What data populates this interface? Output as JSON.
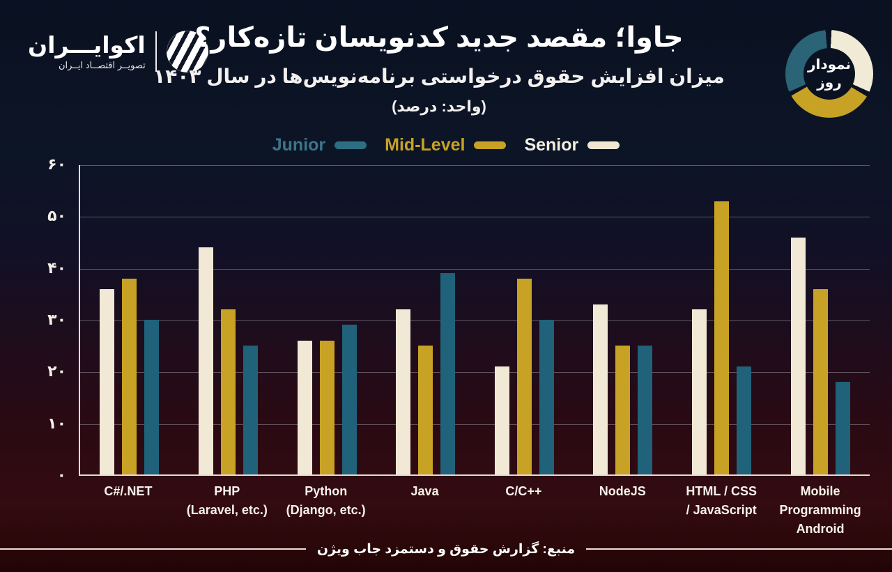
{
  "logo": {
    "name": "اکوایـــران",
    "tagline": "تصویــر اقتصــاد ایــران"
  },
  "badge": {
    "line1": "نمودار",
    "line2": "روز"
  },
  "header": {
    "title": "جاوا؛ مقصد جدید کدنویسان تازه‌کار؟",
    "subtitle": "میزان افزایش حقوق درخواستی برنامه‌نویس‌ها در سال ۱۴۰۳",
    "unit": "(واحد: درصد)"
  },
  "legend": {
    "items": [
      {
        "label": "Junior",
        "text_color": "#3e7488",
        "swatch": "#2c6e82"
      },
      {
        "label": "Mid-Level",
        "text_color": "#c8a224",
        "swatch": "#c8a224"
      },
      {
        "label": "Senior",
        "text_color": "#f3eee0",
        "swatch": "#efe7d2"
      }
    ]
  },
  "colors": {
    "junior": "#1f627a",
    "mid": "#c8a224",
    "senior": "#f1e9d6",
    "grid": "rgba(205,208,220,0.38)",
    "axis": "#e6d9d9",
    "background_top": "#0a1121",
    "background_bottom": "#220406"
  },
  "chart_data": {
    "type": "bar",
    "title": "جاوا؛ مقصد جدید کدنویسان تازه‌کار؟",
    "subtitle": "میزان افزایش حقوق درخواستی برنامه‌نویس‌ها در سال ۱۴۰۳",
    "unit": "درصد",
    "categories": [
      "C#/.NET",
      "PHP (Laravel, etc.)",
      "Python (Django, etc.)",
      "Java",
      "C/C++",
      "NodeJS",
      "HTML / CSS / JavaScript",
      "Mobile Programming Android"
    ],
    "category_label_lines": [
      [
        "C#/.NET"
      ],
      [
        "PHP",
        "(Laravel, etc.)"
      ],
      [
        "Python",
        "(Django, etc.)"
      ],
      [
        "Java"
      ],
      [
        "C/C++"
      ],
      [
        "NodeJS"
      ],
      [
        "HTML / CSS",
        "/ JavaScript"
      ],
      [
        "Mobile",
        "Programming",
        "Android"
      ]
    ],
    "series": [
      {
        "name": "Senior",
        "color": "#f1e9d6",
        "values": [
          36,
          44,
          26,
          32,
          21,
          33,
          32,
          46
        ]
      },
      {
        "name": "Mid-Level",
        "color": "#c8a224",
        "values": [
          38,
          32,
          26,
          25,
          38,
          25,
          53,
          36
        ]
      },
      {
        "name": "Junior",
        "color": "#1f627a",
        "values": [
          30,
          25,
          29,
          39,
          30,
          25,
          21,
          18
        ]
      }
    ],
    "ylim": [
      0,
      60
    ],
    "yticks_values": [
      0,
      10,
      20,
      30,
      40,
      50,
      60
    ],
    "ytick_labels": [
      "۰",
      "۱۰",
      "۲۰",
      "۳۰",
      "۴۰",
      "۵۰",
      "۶۰"
    ],
    "grid": "horizontal",
    "legend_position": "top"
  },
  "footer": {
    "source": "منبع: گزارش حقوق و دستمزد جاب ویژن"
  }
}
